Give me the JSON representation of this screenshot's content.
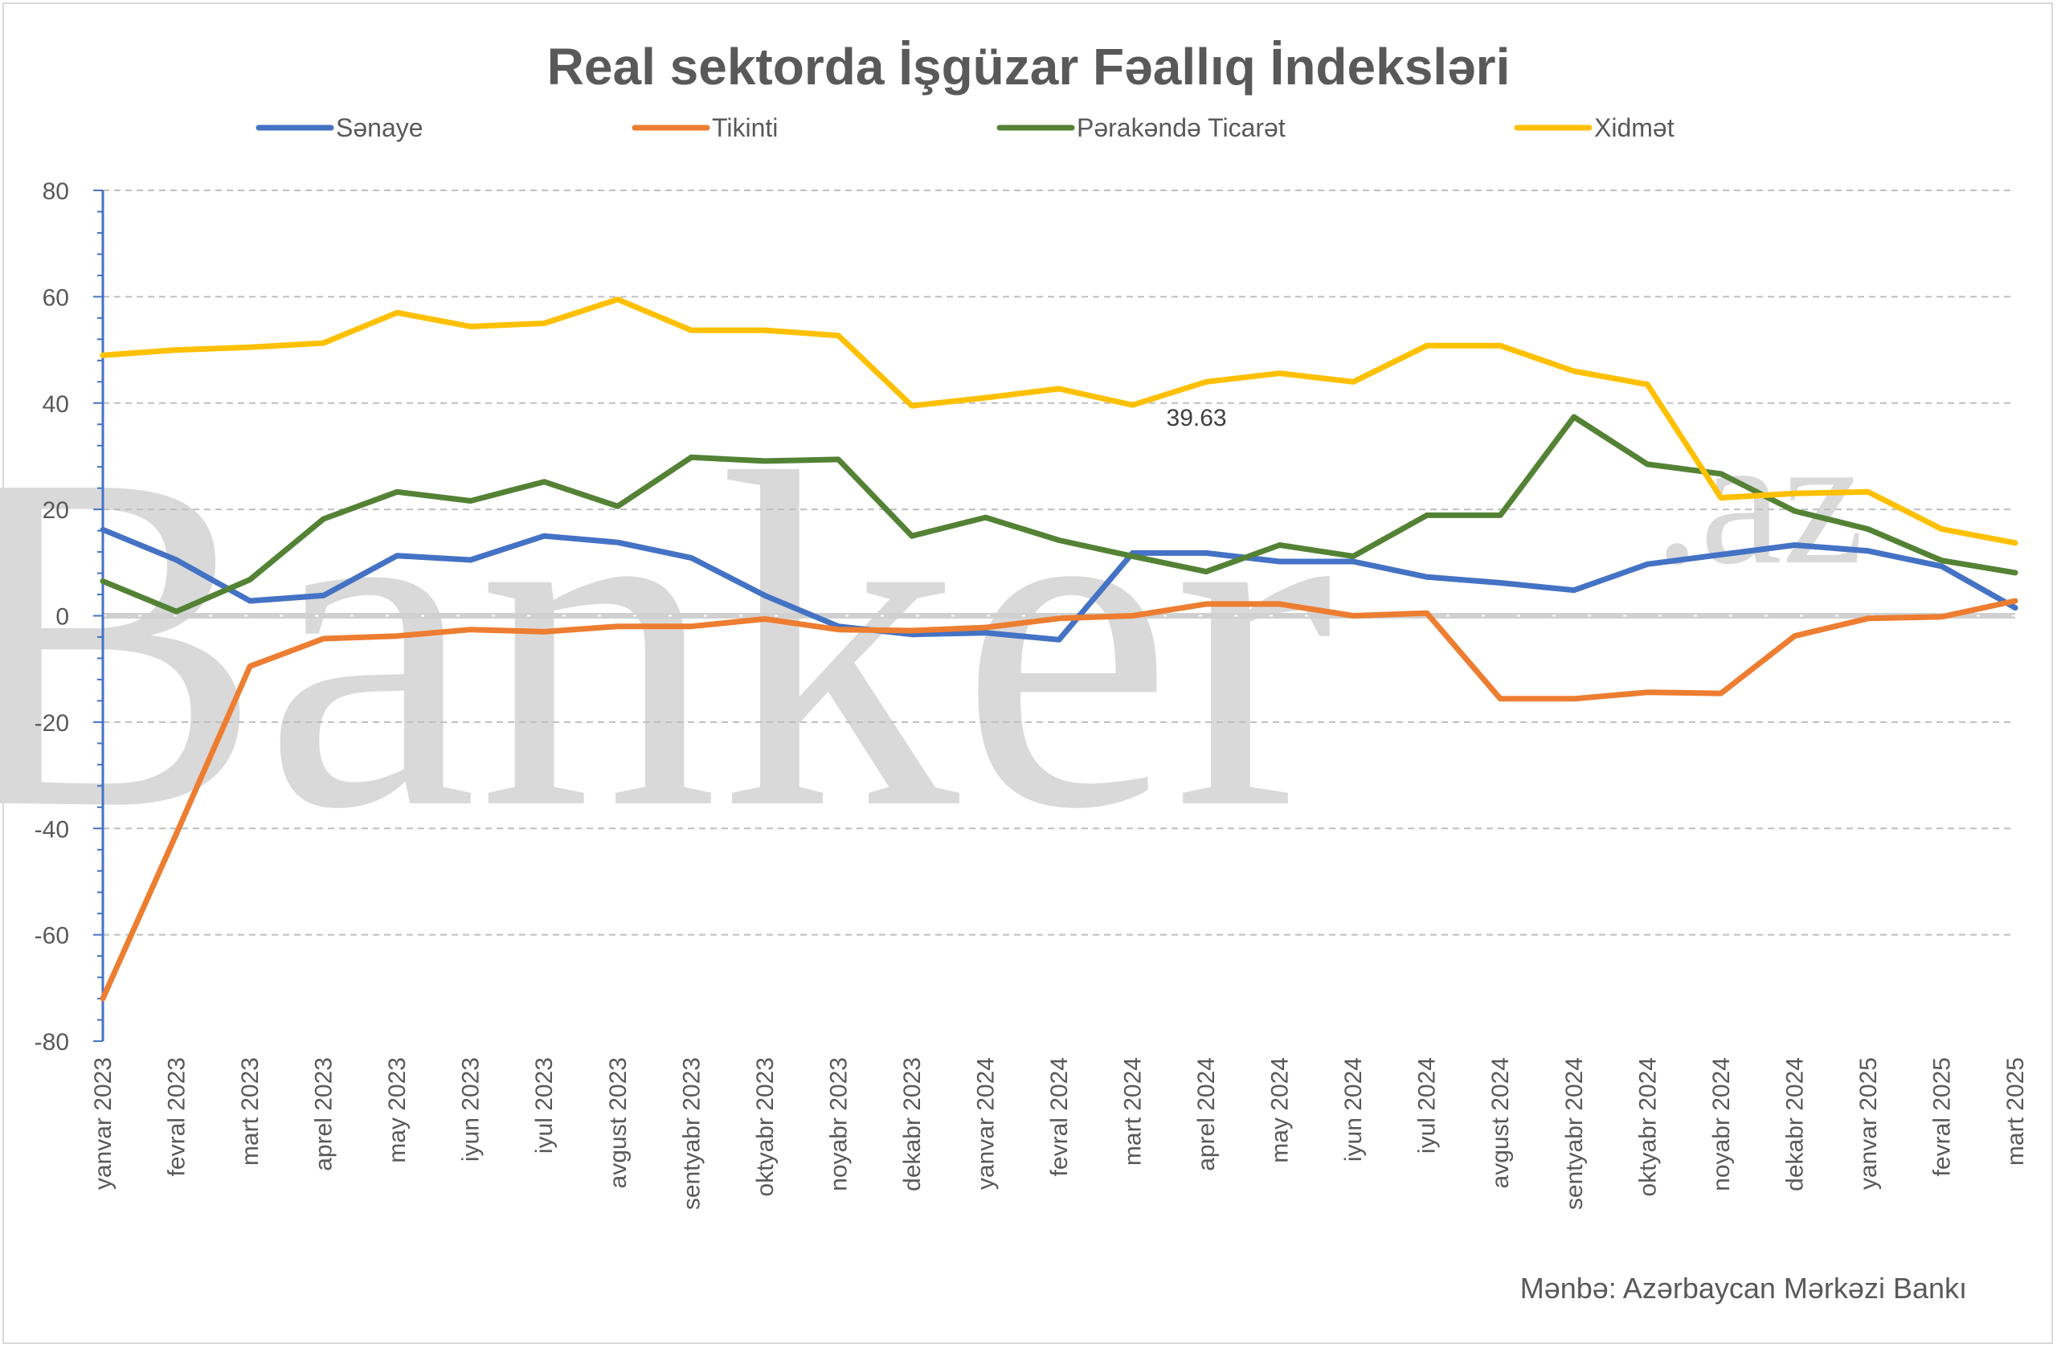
{
  "chart_data": {
    "type": "line",
    "title": "Real sektorda İşgüzar Fəallıq İndeksləri",
    "categories": [
      "yanvar 2023",
      "fevral 2023",
      "mart 2023",
      "aprel 2023",
      "may 2023",
      "iyun 2023",
      "iyul 2023",
      "avgust 2023",
      "sentyabr 2023",
      "oktyabr 2023",
      "noyabr 2023",
      "dekabr 2023",
      "yanvar 2024",
      "fevral 2024",
      "mart 2024",
      "aprel 2024",
      "may 2024",
      "iyun 2024",
      "iyul 2024",
      "avgust 2024",
      "sentyabr 2024",
      "oktyabr 2024",
      "noyabr 2024",
      "dekabr 2024",
      "yanvar 2025",
      "fevral 2025",
      "mart 2025"
    ],
    "series": [
      {
        "name": "Sənaye",
        "color": "#4472c4",
        "values": [
          16.2,
          10.5,
          2.8,
          3.8,
          11.3,
          10.5,
          15.0,
          13.8,
          10.9,
          3.8,
          -2.0,
          -3.5,
          -3.2,
          -4.5,
          11.8,
          11.8,
          10.2,
          10.2,
          7.3,
          6.2,
          4.8,
          9.7,
          11.5,
          13.3,
          12.2,
          9.3,
          1.5
        ]
      },
      {
        "name": "Tikinti",
        "color": "#ed7d31",
        "values": [
          -72.0,
          -41.0,
          -9.5,
          -4.3,
          -3.8,
          -2.6,
          -3.0,
          -2.0,
          -2.0,
          -0.6,
          -2.6,
          -2.8,
          -2.2,
          -0.5,
          0.0,
          2.2,
          2.2,
          0.0,
          0.5,
          -15.6,
          -15.6,
          -14.4,
          -14.6,
          -3.8,
          -0.5,
          -0.2,
          2.8
        ]
      },
      {
        "name": "Pərakəndə Ticarət",
        "color": "#548235",
        "values": [
          6.5,
          0.8,
          6.8,
          18.2,
          23.3,
          21.6,
          25.2,
          20.6,
          29.8,
          29.1,
          29.4,
          15.0,
          18.5,
          14.2,
          11.2,
          8.3,
          13.3,
          11.2,
          18.9,
          18.9,
          37.4,
          28.5,
          26.7,
          19.7,
          16.3,
          10.4,
          8.1
        ]
      },
      {
        "name": "Xidmət",
        "color": "#ffc000",
        "values": [
          49.0,
          50.0,
          50.5,
          51.3,
          57.0,
          54.4,
          55.0,
          59.5,
          53.7,
          53.7,
          52.7,
          39.5,
          41.0,
          42.7,
          39.63,
          44.0,
          45.6,
          44.0,
          50.8,
          50.8,
          46.0,
          43.5,
          22.2,
          23.0,
          23.3,
          16.3,
          13.7
        ]
      }
    ],
    "ylim": [
      -80,
      80
    ],
    "yticks": [
      80,
      60,
      40,
      20,
      0,
      -20,
      -40,
      -60,
      -80
    ],
    "grid": true,
    "legend_position": "top",
    "annotation": {
      "text": "39.63",
      "series": "Xidmət",
      "category": "mart 2024"
    },
    "source": "Mənbə: Azərbaycan Mərkəzi Bankı",
    "watermark": {
      "main": "Banker",
      "suffix": ".az"
    }
  }
}
